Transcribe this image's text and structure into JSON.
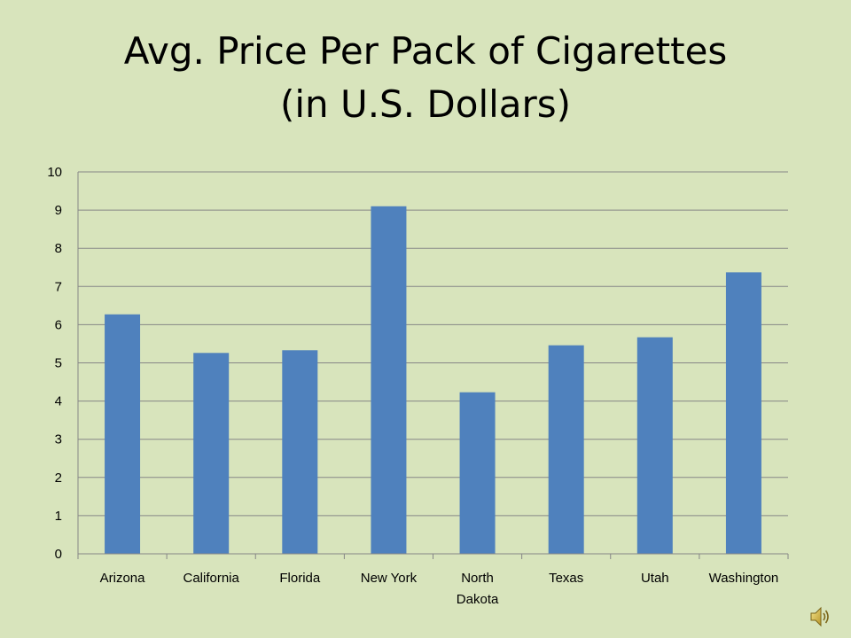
{
  "slide": {
    "title_line1": "Avg. Price Per Pack of Cigarettes",
    "title_line2": "(in U.S. Dollars)"
  },
  "audio_icon": "speaker-icon",
  "chart_data": {
    "type": "bar",
    "categories": [
      "Arizona",
      "California",
      "Florida",
      "New York",
      "North Dakota",
      "Texas",
      "Utah",
      "Washington"
    ],
    "category_lines": [
      [
        "Arizona"
      ],
      [
        "California"
      ],
      [
        "Florida"
      ],
      [
        "New York"
      ],
      [
        "North",
        "Dakota"
      ],
      [
        "Texas"
      ],
      [
        "Utah"
      ],
      [
        "Washington"
      ]
    ],
    "values": [
      6.27,
      5.26,
      5.33,
      9.1,
      4.23,
      5.46,
      5.67,
      7.37
    ],
    "title": "",
    "xlabel": "",
    "ylabel": "",
    "ylim": [
      0,
      10
    ],
    "yticks": [
      0,
      1,
      2,
      3,
      4,
      5,
      6,
      7,
      8,
      9,
      10
    ],
    "grid": true,
    "legend": "none",
    "bar_color": "#4f81bd",
    "grid_color": "#868686"
  }
}
